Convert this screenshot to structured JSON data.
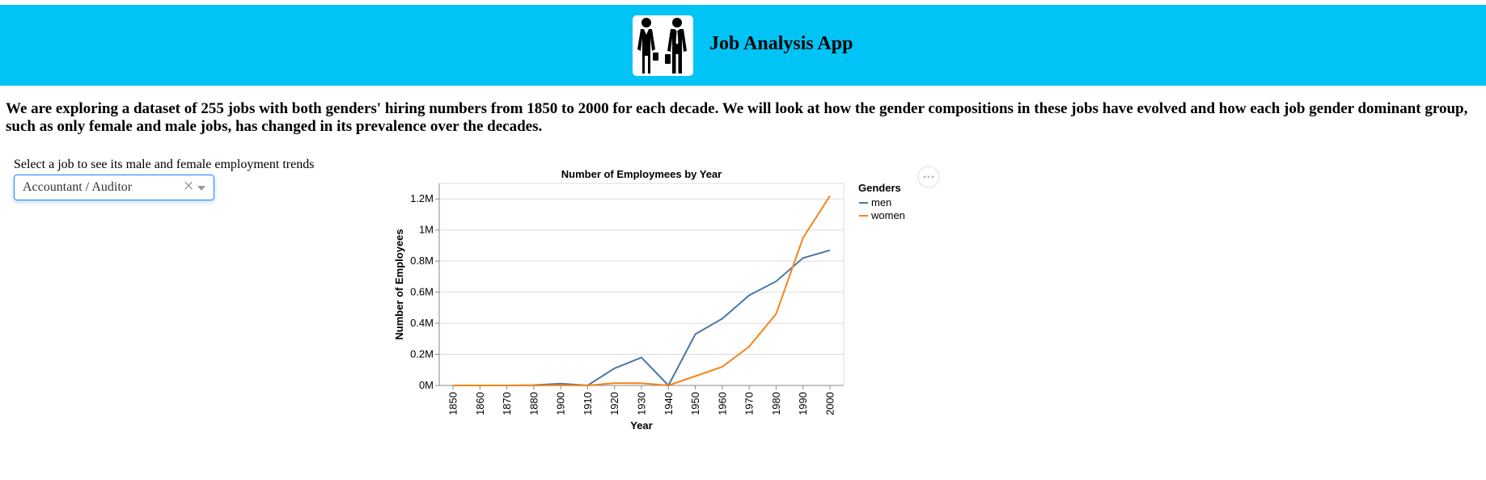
{
  "header": {
    "title": "Job Analysis App",
    "background": "#00c4f5",
    "logo_icon": "businesswoman-businessman-icon"
  },
  "intro": {
    "text": "We are exploring a dataset of 255 jobs with both genders' hiring numbers from 1850 to 2000 for each decade. We will look at how the gender compositions in these jobs have evolved and how each job gender dominant group, such as only female and male jobs, has changed in its prevalence over the decades."
  },
  "job_select": {
    "label": "Select a job to see its male and female employment trends",
    "value": "Accountant / Auditor",
    "clear_icon": "close-icon",
    "arrow_icon": "chevron-down-icon"
  },
  "chart_data": {
    "type": "line",
    "title": "Number of Employmees by Year",
    "xlabel": "Year",
    "ylabel": "Number of Employees",
    "x": [
      1850,
      1860,
      1870,
      1880,
      1900,
      1910,
      1920,
      1930,
      1940,
      1950,
      1960,
      1970,
      1980,
      1990,
      2000
    ],
    "yticks": [
      "0M",
      "0.2M",
      "0.4M",
      "0.6M",
      "0.8M",
      "1M",
      "1.2M"
    ],
    "ytick_values": [
      0,
      0.2,
      0.4,
      0.6,
      0.8,
      1.0,
      1.2
    ],
    "ylim": [
      0,
      1.3
    ],
    "grid": true,
    "legend": {
      "title": "Genders",
      "placement": "right"
    },
    "series": [
      {
        "name": "men",
        "color": "#4c78a8",
        "values": [
          0.0,
          0.0,
          0.0,
          0.002,
          0.012,
          0.0,
          0.11,
          0.18,
          0.0,
          0.33,
          0.43,
          0.58,
          0.67,
          0.82,
          0.87
        ]
      },
      {
        "name": "women",
        "color": "#f58518",
        "values": [
          0.0,
          0.0,
          0.0,
          0.0,
          0.001,
          0.0,
          0.015,
          0.014,
          0.0,
          0.06,
          0.12,
          0.25,
          0.46,
          0.95,
          1.22
        ]
      }
    ]
  },
  "chart_menu": {
    "icon": "more-horizontal-icon"
  }
}
